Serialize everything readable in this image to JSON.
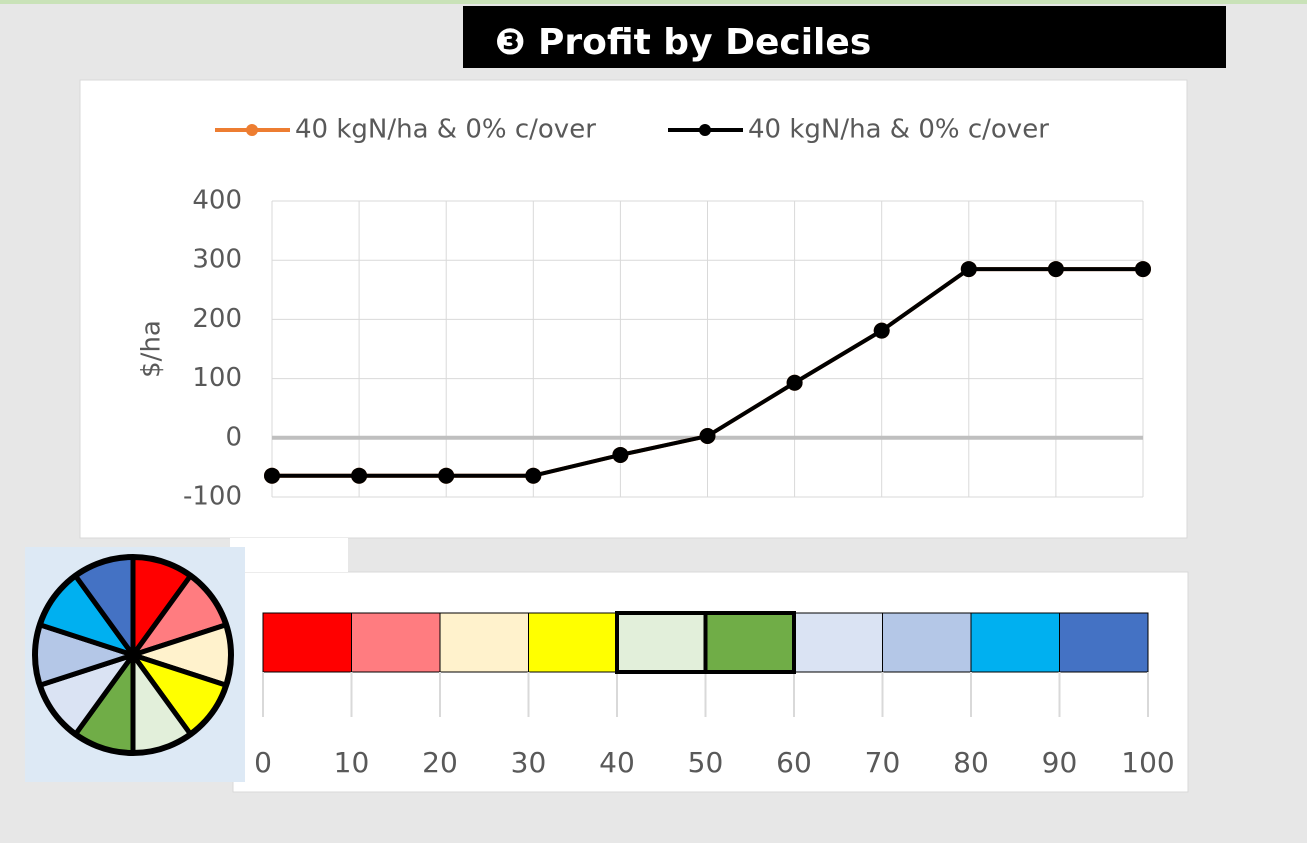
{
  "header": {
    "title": "❸ Profit by Deciles"
  },
  "chart_data": {
    "type": "line",
    "x": [
      0,
      10,
      20,
      30,
      40,
      50,
      60,
      70,
      80,
      90,
      100
    ],
    "series": [
      {
        "name": "40 kgN/ha & 0% c/over",
        "color": "#ed7d31",
        "values": [
          -64,
          -64,
          -64,
          -64,
          -29,
          3,
          93,
          181,
          285,
          285,
          285
        ]
      },
      {
        "name": "40 kgN/ha & 0% c/over",
        "color": "#000000",
        "values": [
          -64,
          -64,
          -64,
          -64,
          -29,
          3,
          93,
          181,
          285,
          285,
          285
        ]
      }
    ],
    "y_label": "$/ha",
    "xlim": [
      0,
      100
    ],
    "xticks": [
      0,
      10,
      20,
      30,
      40,
      50,
      60,
      70,
      80,
      90,
      100
    ],
    "ylim": [
      -100,
      400
    ],
    "yticks": [
      -100,
      0,
      100,
      200,
      300,
      400
    ],
    "grid": true,
    "legend": "top"
  },
  "decile_scale": {
    "xlim": [
      0,
      100
    ],
    "xticks": [
      0,
      10,
      20,
      30,
      40,
      50,
      60,
      70,
      80,
      90,
      100
    ],
    "colors": [
      "#ff0000",
      "#ff7c80",
      "#fff2cc",
      "#ffff00",
      "#e2efda",
      "#70ad47",
      "#dae3f3",
      "#b4c7e7",
      "#00b0f0",
      "#4472c4"
    ],
    "highlight": [
      40,
      60
    ]
  }
}
